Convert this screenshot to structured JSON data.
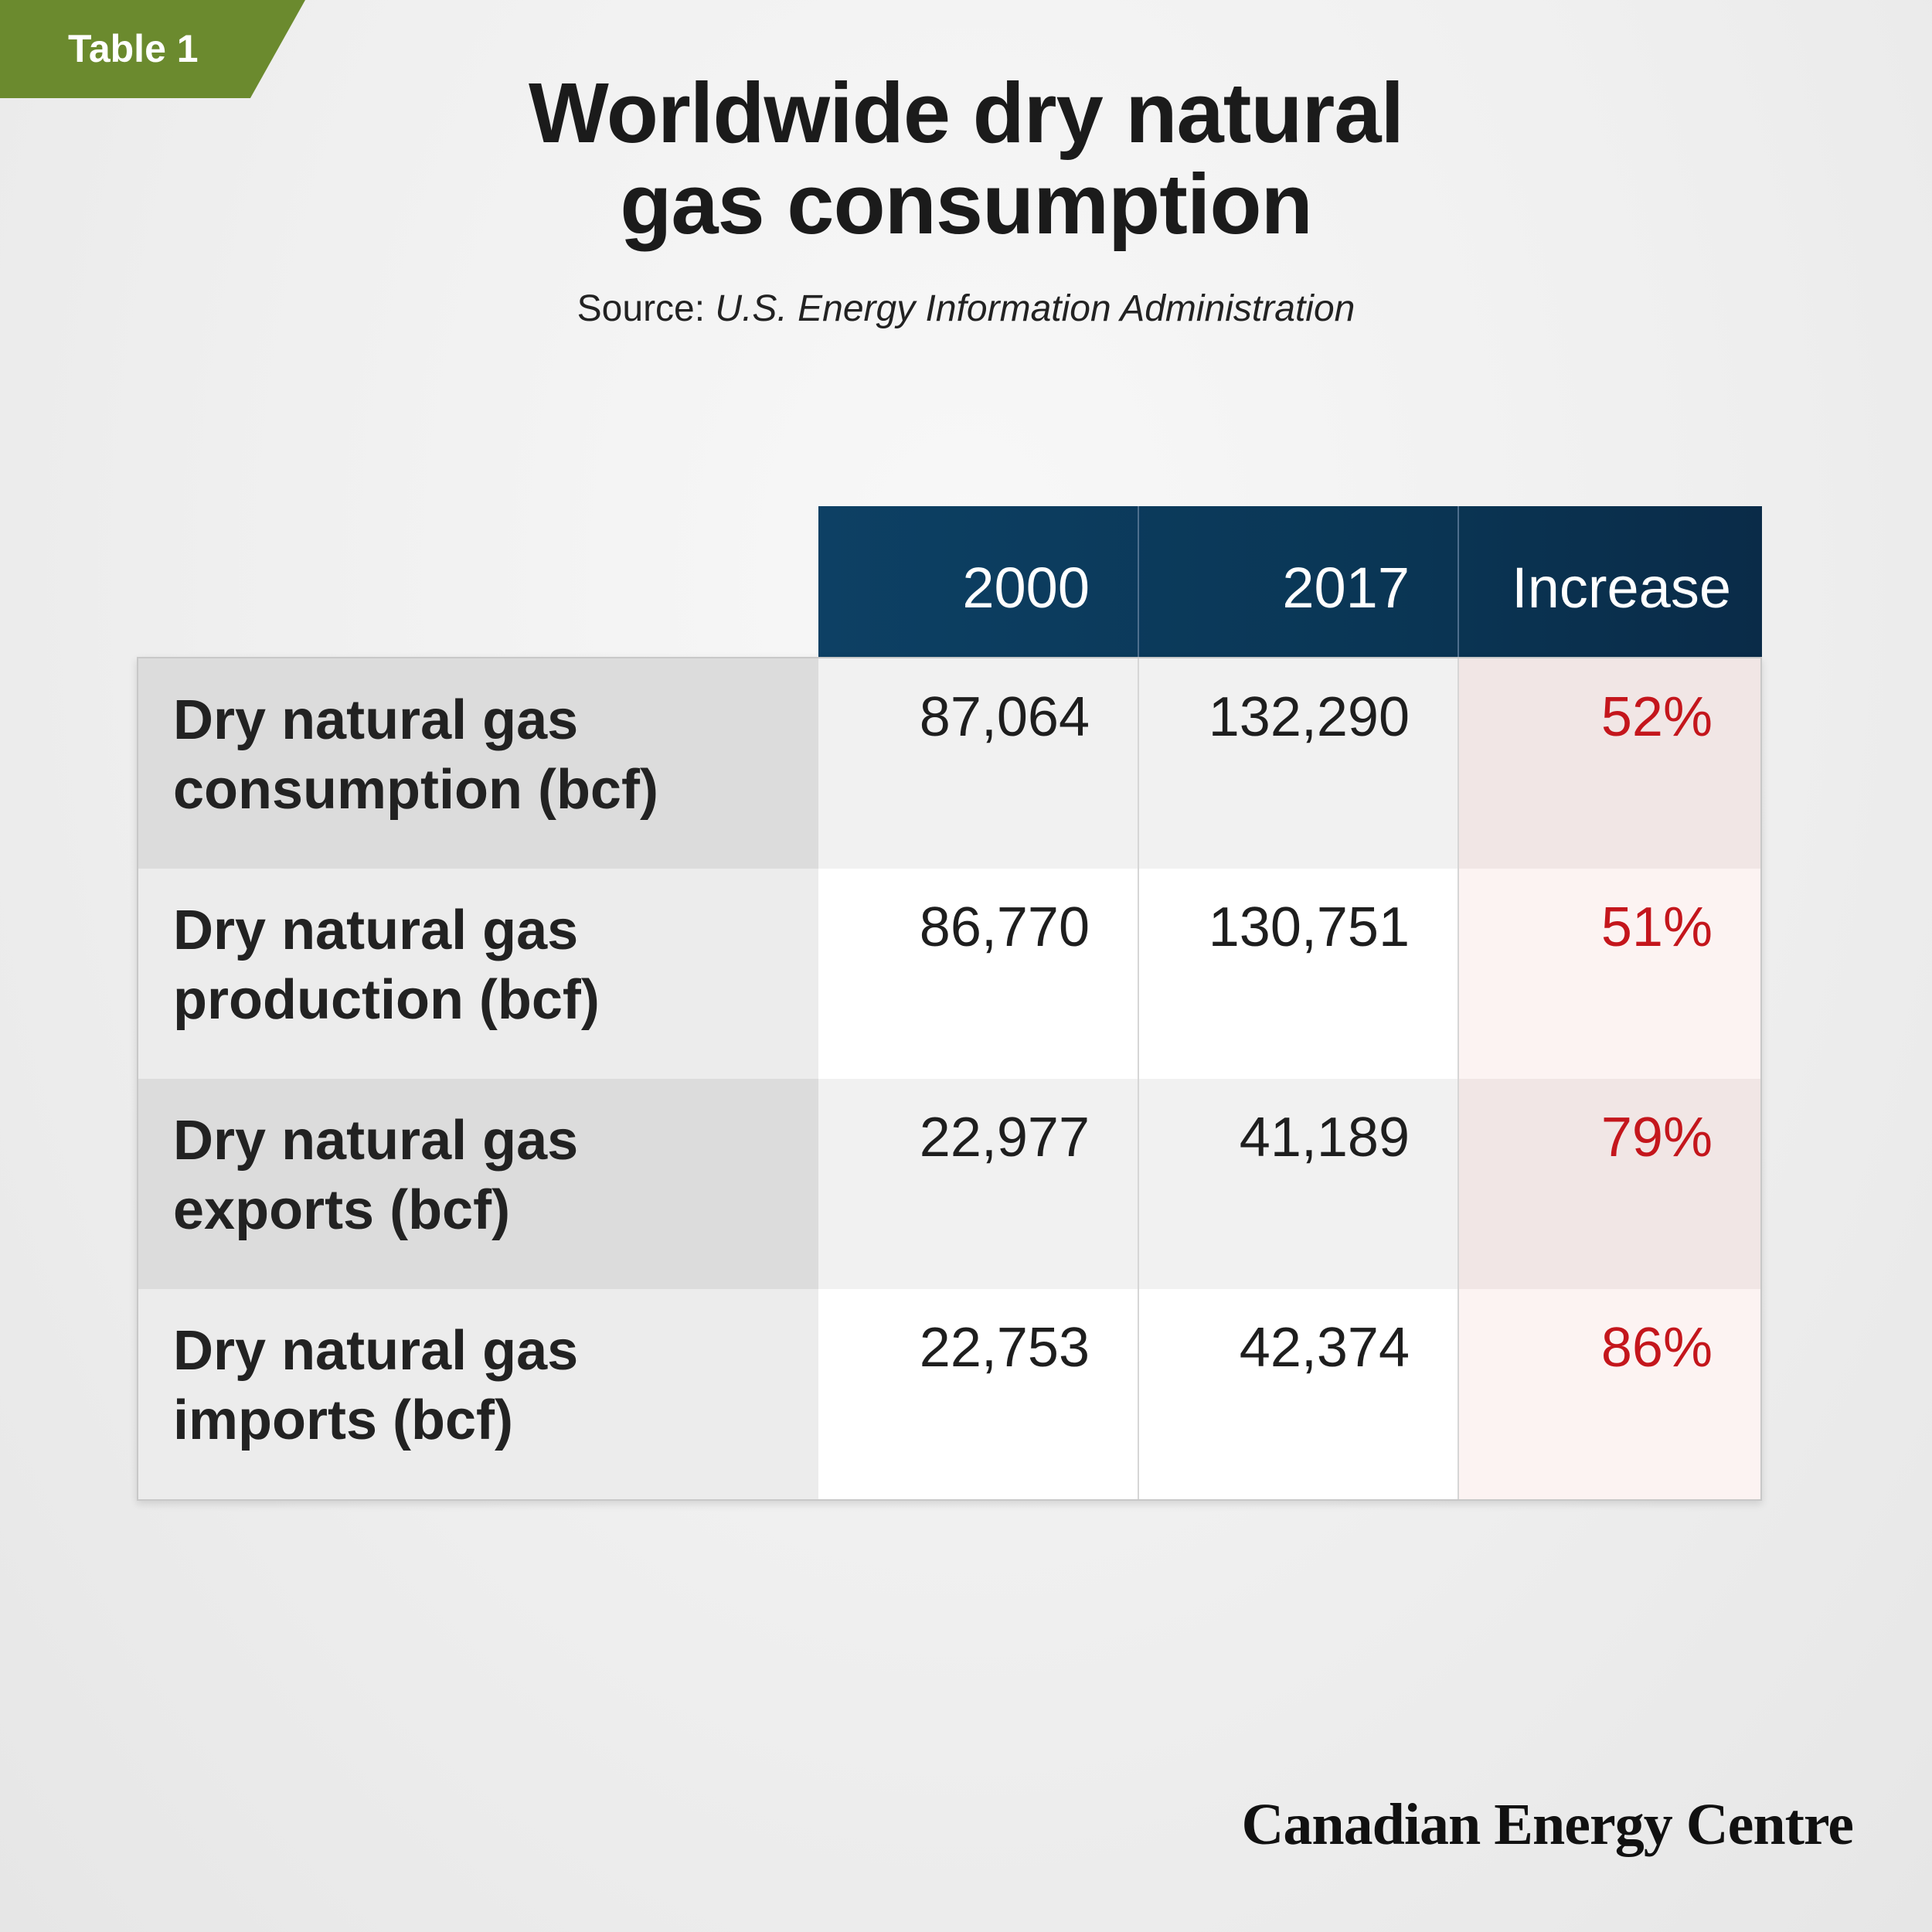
{
  "tag": "Table 1",
  "title_lines": [
    "Worldwide dry natural",
    "gas consumption"
  ],
  "source": {
    "label": "Source:",
    "name": "U.S. Energy Information Administration"
  },
  "brand": "Canadian Energy Centre",
  "colors": {
    "header_bg": "#0a3655",
    "tag_bg": "#6b8a2e",
    "increase_text": "#c4161c"
  },
  "chart_data": {
    "type": "table",
    "title": "Worldwide dry natural gas consumption",
    "columns": [
      "2000",
      "2017",
      "Increase"
    ],
    "rows": [
      {
        "label_lines": [
          "Dry natural gas",
          "consumption (bcf)"
        ],
        "v2000": "87,064",
        "v2017": "132,290",
        "increase": "52%"
      },
      {
        "label_lines": [
          "Dry natural gas",
          "production (bcf)"
        ],
        "v2000": "86,770",
        "v2017": "130,751",
        "increase": "51%"
      },
      {
        "label_lines": [
          "Dry natural gas",
          "exports (bcf)"
        ],
        "v2000": "22,977",
        "v2017": "41,189",
        "increase": "79%"
      },
      {
        "label_lines": [
          "Dry natural gas",
          "imports (bcf)"
        ],
        "v2000": "22,753",
        "v2017": "42,374",
        "increase": "86%"
      }
    ]
  }
}
